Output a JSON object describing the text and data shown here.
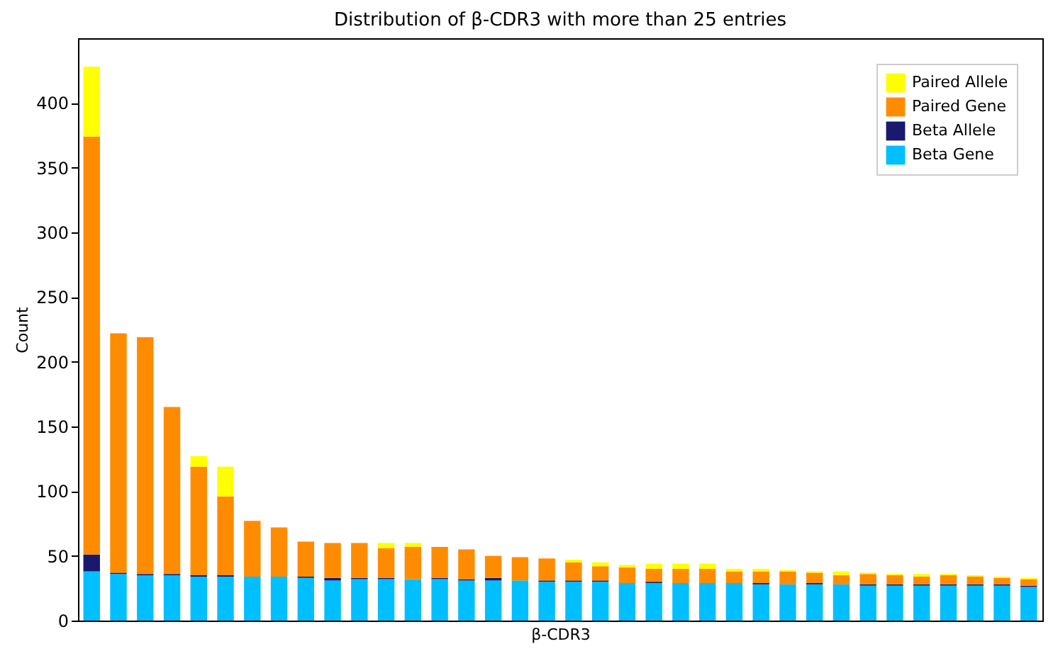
{
  "chart_data": {
    "type": "bar",
    "title": "Distribution of β-CDR3 with more than 25 entries",
    "xlabel": "β-CDR3",
    "ylabel": "Count",
    "stacked": true,
    "legend": "top right",
    "ylim": [
      0,
      450
    ],
    "yticks": [
      0,
      50,
      100,
      150,
      200,
      250,
      300,
      350,
      400
    ],
    "categories": [
      null,
      null,
      null,
      null,
      null,
      null,
      null,
      null,
      null,
      null,
      null,
      null,
      null,
      null,
      null,
      null,
      null,
      null,
      null,
      null,
      null,
      null,
      null,
      null,
      null,
      null,
      null,
      null,
      null,
      null,
      null,
      null,
      null,
      null,
      null,
      null
    ],
    "series": [
      {
        "name": "Beta Gene",
        "color": "#00bfff",
        "values": [
          38,
          36,
          35,
          35,
          34,
          34,
          34,
          34,
          33,
          31,
          32,
          32,
          32,
          32,
          31,
          31,
          31,
          30,
          30,
          30,
          29,
          29,
          29,
          29,
          29,
          28,
          28,
          28,
          28,
          27,
          27,
          27,
          27,
          27,
          27,
          26
        ]
      },
      {
        "name": "Beta Allele",
        "color": "#191970",
        "values": [
          13,
          1,
          1,
          1,
          1,
          1,
          0,
          0,
          1,
          2,
          1,
          1,
          0,
          1,
          1,
          2,
          0,
          1,
          1,
          1,
          0,
          1,
          0,
          0,
          0,
          1,
          0,
          1,
          0,
          1,
          1,
          1,
          1,
          1,
          1,
          1
        ]
      },
      {
        "name": "Paired Gene",
        "color": "#ff8c00",
        "values": [
          323,
          185,
          183,
          129,
          84,
          61,
          43,
          38,
          27,
          27,
          27,
          23,
          25,
          24,
          23,
          17,
          18,
          17,
          14,
          11,
          12,
          10,
          11,
          11,
          9,
          9,
          10,
          8,
          7,
          8,
          7,
          6,
          7,
          6,
          5,
          5
        ]
      },
      {
        "name": "Paired Allele",
        "color": "#ffff00",
        "values": [
          54,
          0,
          0,
          0,
          8,
          23,
          0,
          0,
          0,
          0,
          0,
          4,
          3,
          0,
          0,
          0,
          0,
          0,
          2,
          3,
          2,
          4,
          4,
          4,
          2,
          2,
          1,
          1,
          3,
          1,
          1,
          2,
          1,
          1,
          1,
          1
        ]
      }
    ]
  }
}
